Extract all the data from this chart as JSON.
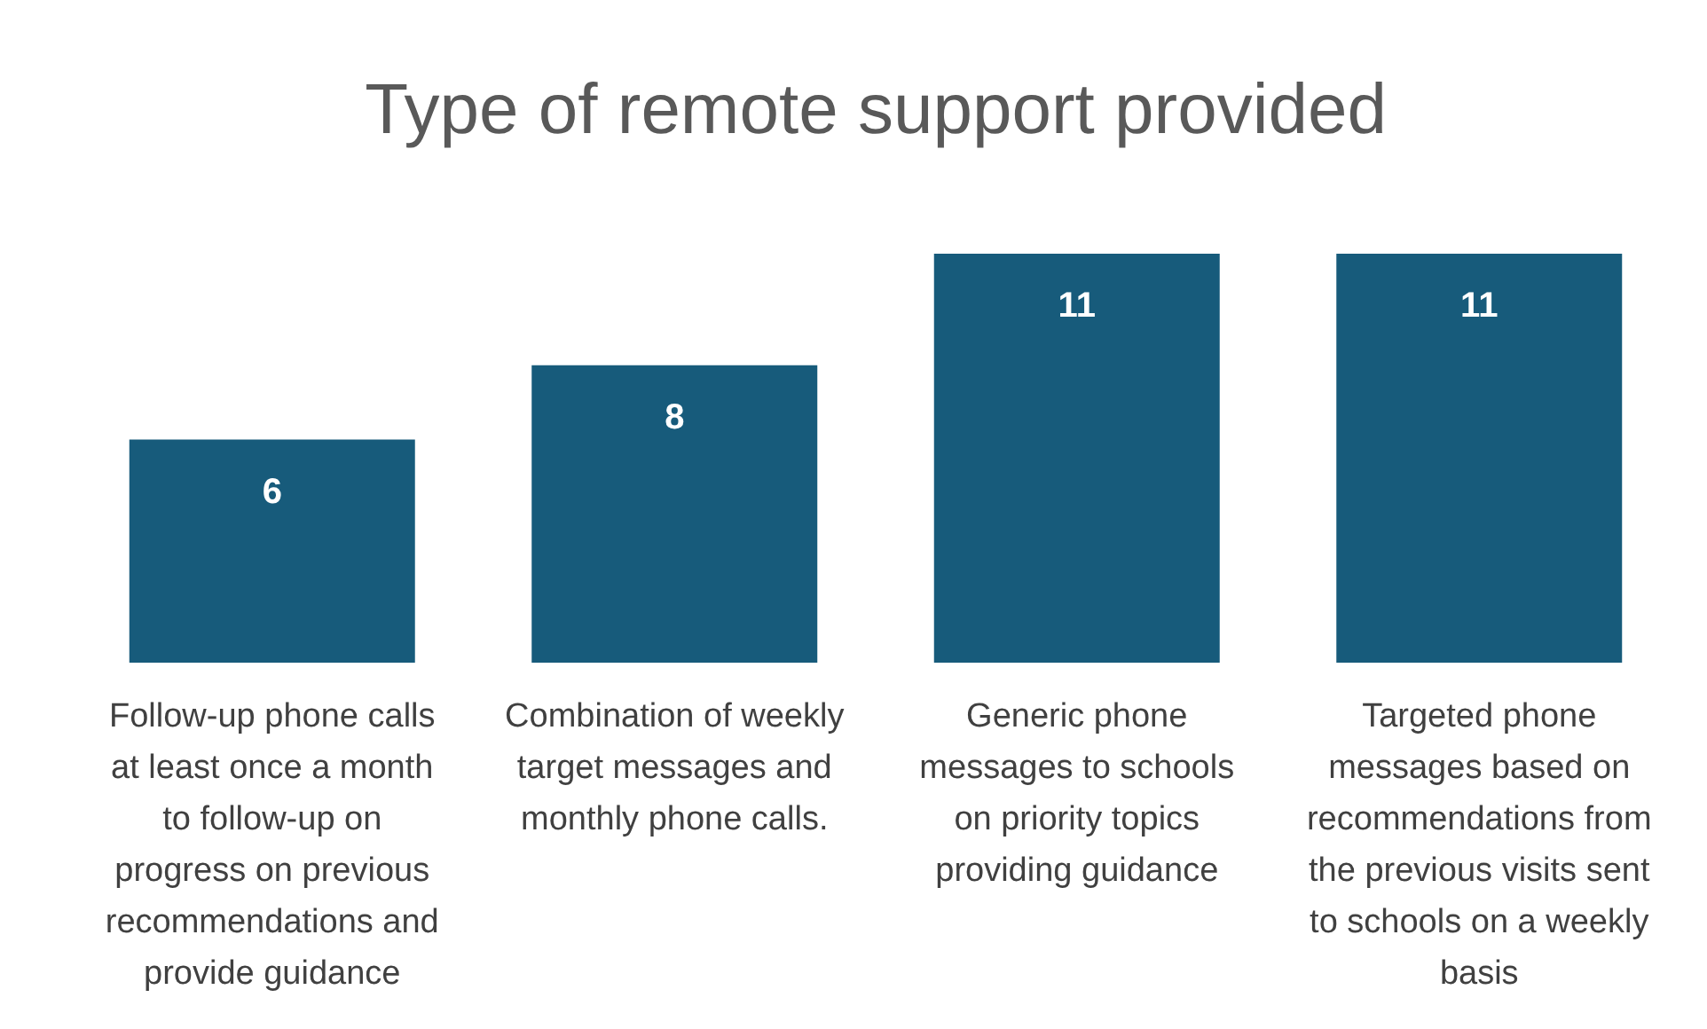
{
  "chart_data": {
    "type": "bar",
    "title": "Type of remote support provided",
    "categories": [
      "Follow-up phone calls at least once a month to follow-up on progress on previous recommendations and provide guidance",
      "Combination of weekly target messages and monthly phone calls.",
      "Generic phone messages to schools on priority topics providing guidance",
      "Targeted phone messages based on recommendations from the previous visits sent to schools on a weekly basis"
    ],
    "values": [
      6,
      8,
      11,
      11
    ],
    "color": "#175b7b",
    "data_labels": true,
    "grid": false,
    "legend": false,
    "tick_labels": "x"
  }
}
